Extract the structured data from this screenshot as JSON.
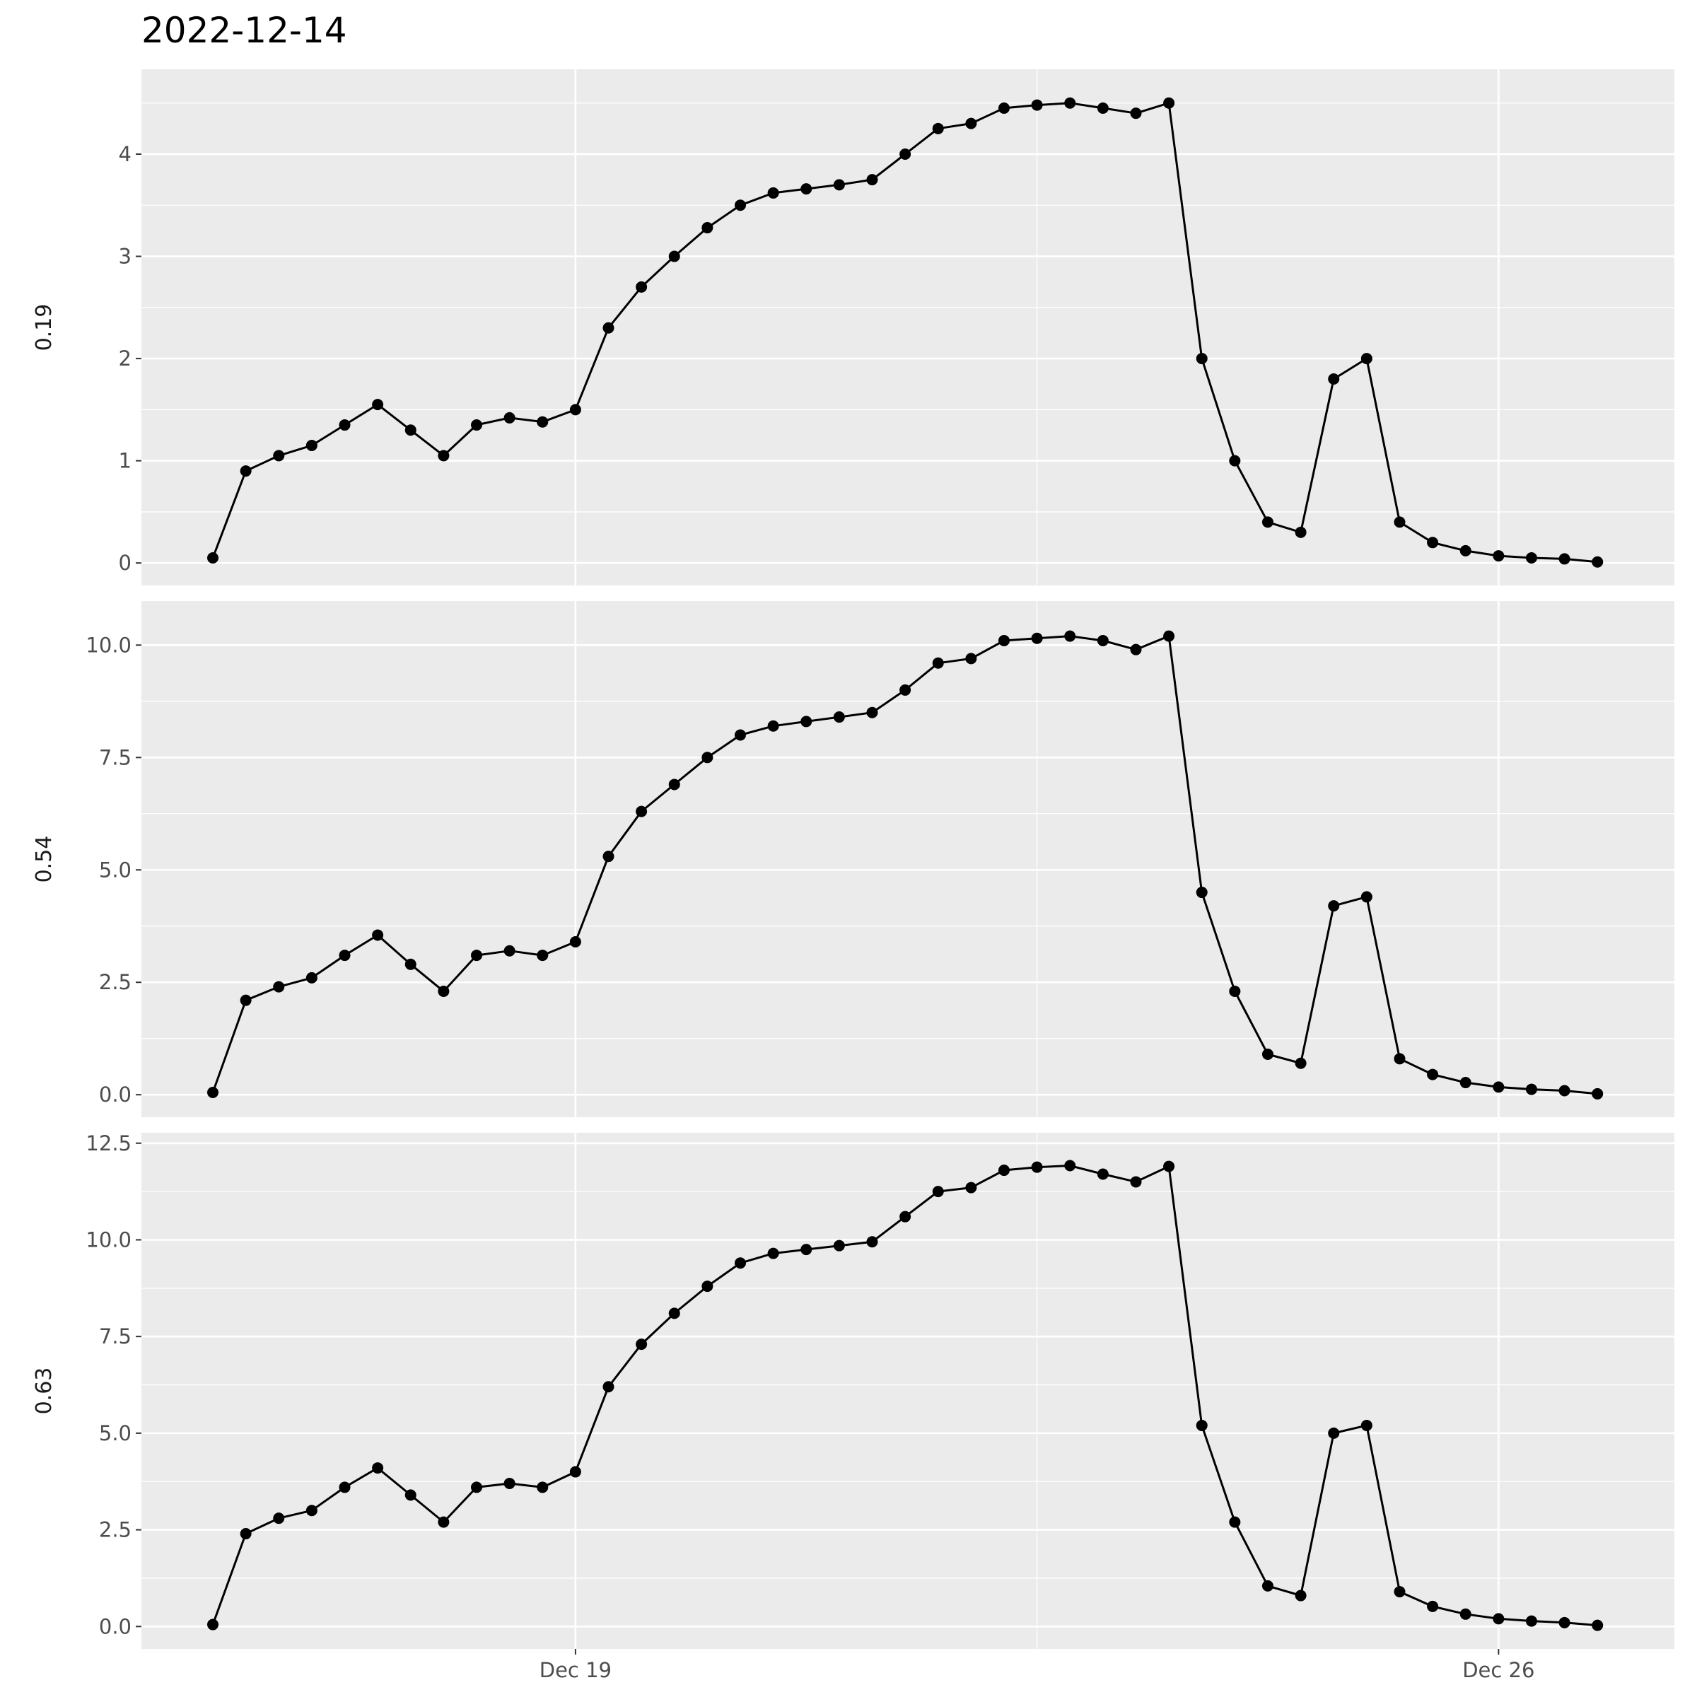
{
  "title": "2022-12-14",
  "chart_data": {
    "type": "line",
    "x_unit": "date",
    "x_ticks": [
      "Dec 19",
      "Dec 26"
    ],
    "x_tick_dates": [
      "2022-12-19",
      "2022-12-26"
    ],
    "xlim": [
      "2022-12-15 17:00",
      "2022-12-27 08:00"
    ],
    "grid": true,
    "legend": "none",
    "line_color": "#000000",
    "panel_background": "#ebebeb",
    "x": [
      "2022-12-16 06:00",
      "2022-12-16 12:00",
      "2022-12-16 18:00",
      "2022-12-17 00:00",
      "2022-12-17 06:00",
      "2022-12-17 12:00",
      "2022-12-17 18:00",
      "2022-12-18 00:00",
      "2022-12-18 06:00",
      "2022-12-18 12:00",
      "2022-12-18 18:00",
      "2022-12-19 00:00",
      "2022-12-19 06:00",
      "2022-12-19 12:00",
      "2022-12-19 18:00",
      "2022-12-20 00:00",
      "2022-12-20 06:00",
      "2022-12-20 12:00",
      "2022-12-20 18:00",
      "2022-12-21 00:00",
      "2022-12-21 06:00",
      "2022-12-21 12:00",
      "2022-12-21 18:00",
      "2022-12-22 00:00",
      "2022-12-22 06:00",
      "2022-12-22 12:00",
      "2022-12-22 18:00",
      "2022-12-23 00:00",
      "2022-12-23 06:00",
      "2022-12-23 12:00",
      "2022-12-23 18:00",
      "2022-12-24 00:00",
      "2022-12-24 06:00",
      "2022-12-24 12:00",
      "2022-12-24 18:00",
      "2022-12-25 00:00",
      "2022-12-25 06:00",
      "2022-12-25 12:00",
      "2022-12-25 18:00",
      "2022-12-26 00:00",
      "2022-12-26 06:00",
      "2022-12-26 12:00",
      "2022-12-26 18:00"
    ],
    "panels": [
      {
        "ylabel": "0.19",
        "ylim": [
          -0.22,
          4.83
        ],
        "y_ticks": [
          "0",
          "1",
          "2",
          "3",
          "4"
        ],
        "y_tick_values": [
          0,
          1,
          2,
          3,
          4
        ],
        "values": [
          0.05,
          0.9,
          1.05,
          1.15,
          1.35,
          1.55,
          1.3,
          1.05,
          1.35,
          1.42,
          1.38,
          1.5,
          2.3,
          2.7,
          3.0,
          3.28,
          3.5,
          3.62,
          3.66,
          3.7,
          3.75,
          4.0,
          4.25,
          4.3,
          4.45,
          4.48,
          4.5,
          4.45,
          4.4,
          4.5,
          2.0,
          1.0,
          0.4,
          0.3,
          1.8,
          2.0,
          0.4,
          0.2,
          0.12,
          0.07,
          0.05,
          0.04,
          0.01
        ]
      },
      {
        "ylabel": "0.54",
        "ylim": [
          -0.5,
          10.98
        ],
        "y_ticks": [
          "0.0",
          "2.5",
          "5.0",
          "7.5",
          "10.0"
        ],
        "y_tick_values": [
          0,
          2.5,
          5,
          7.5,
          10
        ],
        "values": [
          0.05,
          2.1,
          2.4,
          2.6,
          3.1,
          3.55,
          2.9,
          2.3,
          3.1,
          3.2,
          3.1,
          3.4,
          5.3,
          6.3,
          6.9,
          7.5,
          8.0,
          8.2,
          8.3,
          8.4,
          8.5,
          9.0,
          9.6,
          9.7,
          10.1,
          10.15,
          10.2,
          10.1,
          9.9,
          10.2,
          4.5,
          2.3,
          0.9,
          0.7,
          4.2,
          4.4,
          0.8,
          0.45,
          0.27,
          0.17,
          0.12,
          0.09,
          0.02
        ]
      },
      {
        "ylabel": "0.63",
        "ylim": [
          -0.58,
          12.77
        ],
        "y_ticks": [
          "0.0",
          "2.5",
          "5.0",
          "7.5",
          "10.0",
          "12.5"
        ],
        "y_tick_values": [
          0,
          2.5,
          5,
          7.5,
          10,
          12.5
        ],
        "values": [
          0.05,
          2.4,
          2.8,
          3.0,
          3.6,
          4.1,
          3.4,
          2.7,
          3.6,
          3.7,
          3.6,
          4.0,
          6.2,
          7.3,
          8.1,
          8.8,
          9.4,
          9.65,
          9.75,
          9.85,
          9.95,
          10.6,
          11.25,
          11.35,
          11.8,
          11.88,
          11.92,
          11.7,
          11.5,
          11.9,
          5.2,
          2.7,
          1.05,
          0.8,
          5.0,
          5.2,
          0.9,
          0.52,
          0.32,
          0.2,
          0.14,
          0.1,
          0.03
        ]
      }
    ]
  }
}
